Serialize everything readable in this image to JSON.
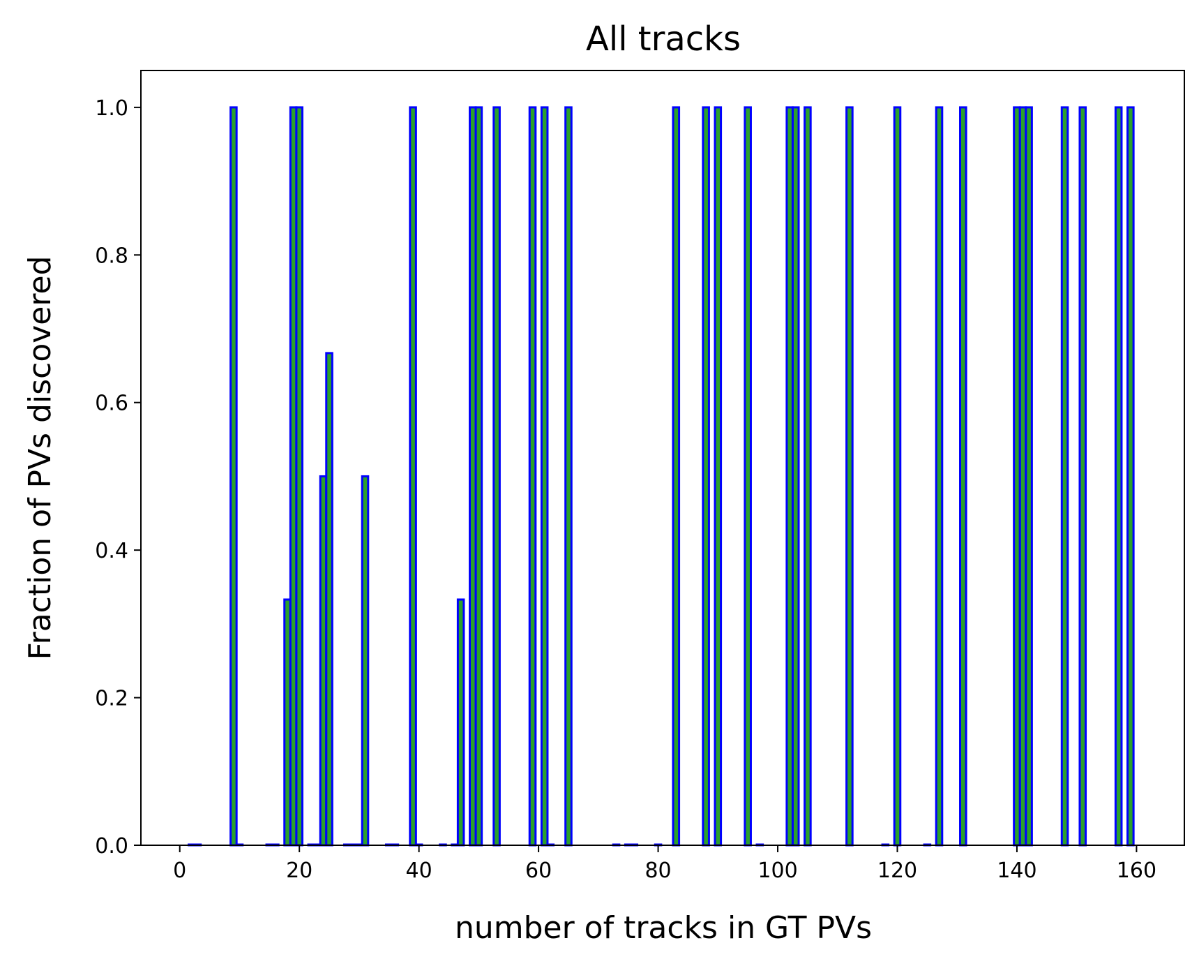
{
  "chart_data": {
    "type": "bar",
    "title": "All tracks",
    "xlabel": "number of tracks in GT PVs",
    "ylabel": "Fraction of PVs discovered",
    "xlim": [
      -6.5,
      168
    ],
    "ylim": [
      0,
      1.05
    ],
    "xticks": [
      0,
      20,
      40,
      60,
      80,
      100,
      120,
      140,
      160
    ],
    "yticks": [
      "0.0",
      "0.2",
      "0.4",
      "0.6",
      "0.8",
      "1.0"
    ],
    "bar_width": 1,
    "grid": false,
    "legend": "none",
    "colors": {
      "bar_fill": "#2ca02c",
      "bar_edge": "#0000ff"
    },
    "x": [
      2,
      3,
      9,
      10,
      15,
      16,
      18,
      19,
      20,
      22,
      23,
      24,
      25,
      28,
      29,
      30,
      31,
      35,
      36,
      39,
      40,
      44,
      46,
      47,
      49,
      50,
      53,
      59,
      61,
      62,
      65,
      73,
      75,
      76,
      80,
      83,
      88,
      90,
      95,
      97,
      102,
      103,
      105,
      112,
      118,
      120,
      125,
      127,
      131,
      140,
      141,
      142,
      148,
      151,
      157,
      159
    ],
    "values": [
      0,
      0,
      1.0,
      0,
      0,
      0,
      0.333,
      1.0,
      1.0,
      0,
      0,
      0.5,
      0.667,
      0,
      0,
      0,
      0.5,
      0,
      0,
      1.0,
      0,
      0,
      0,
      0.333,
      1.0,
      1.0,
      1.0,
      1.0,
      1.0,
      0,
      1.0,
      0,
      0,
      0,
      0,
      1.0,
      1.0,
      1.0,
      1.0,
      0,
      1.0,
      1.0,
      1.0,
      1.0,
      0,
      1.0,
      0,
      1.0,
      1.0,
      1.0,
      1.0,
      1.0,
      1.0,
      1.0,
      1.0,
      1.0
    ]
  }
}
